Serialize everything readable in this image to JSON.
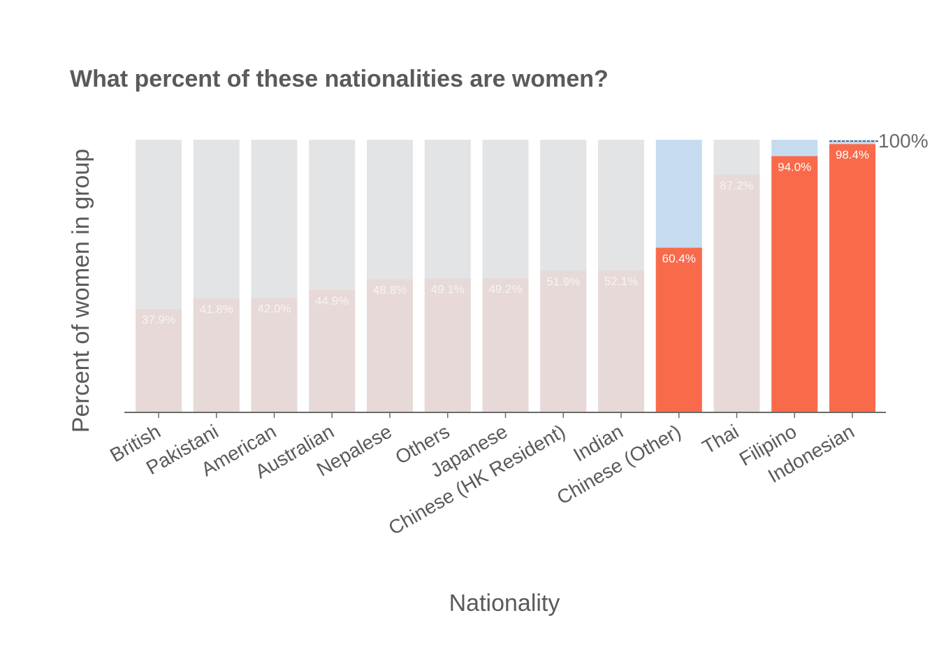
{
  "chart_data": {
    "type": "bar",
    "title": "What percent of these nationalities are women?",
    "xlabel": "Nationality",
    "ylabel": "Percent of women in group",
    "ylim": [
      0,
      100
    ],
    "grid": false,
    "categories": [
      "British",
      "Pakistani",
      "American",
      "Australian",
      "Nepalese",
      "Others",
      "Japanese",
      "Chinese (HK Resident)",
      "Indian",
      "Chinese (Other)",
      "Thai",
      "Filipino",
      "Indonesian"
    ],
    "values": [
      37.9,
      41.8,
      42.0,
      44.9,
      48.8,
      49.1,
      49.2,
      51.9,
      52.1,
      60.4,
      87.2,
      94.0,
      98.4
    ],
    "value_labels": [
      "37.9%",
      "41.8%",
      "42.0%",
      "44.9%",
      "48.8%",
      "49.1%",
      "49.2%",
      "51.9%",
      "52.1%",
      "60.4%",
      "87.2%",
      "94.0%",
      "98.4%"
    ],
    "highlighted": [
      false,
      false,
      false,
      false,
      false,
      false,
      false,
      false,
      false,
      true,
      false,
      true,
      true
    ],
    "reference_line": {
      "value": 100,
      "label": "100%"
    },
    "colors": {
      "highlight_fill": "#f96a4b",
      "highlight_background": "#c6dbef",
      "muted_fill": "#e7d9d7",
      "muted_background": "#e3e4e6",
      "muted_label": "#f4f4f4",
      "highlight_label": "#ffffff",
      "text": "#5a5a5a",
      "axis": "#6a6a6a"
    }
  }
}
